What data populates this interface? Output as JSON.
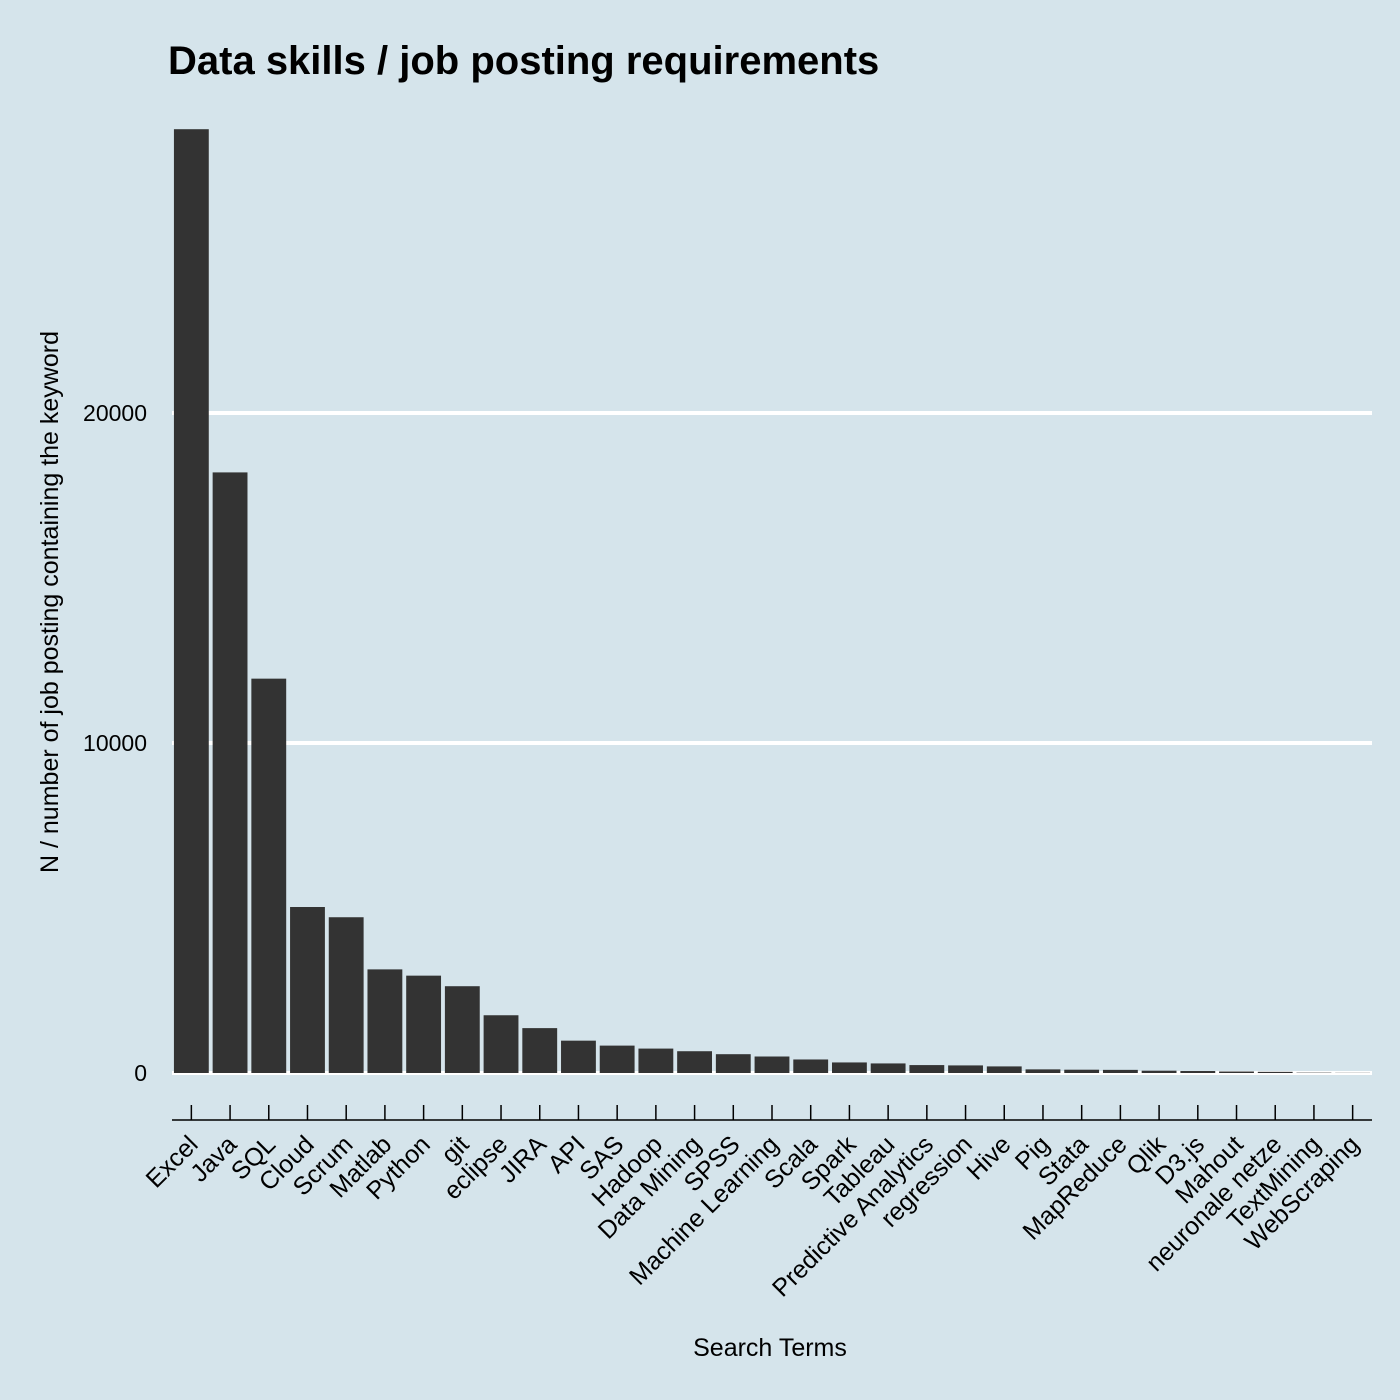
{
  "chart_data": {
    "type": "bar",
    "title": "Data skills / job posting requirements",
    "xlabel": "Search Terms",
    "ylabel": "N / number of job posting containing the keyword",
    "categories": [
      "Excel",
      "Java",
      "SQL",
      "Cloud",
      "Scrum",
      "Matlab",
      "Python",
      "git",
      "eclipse",
      "JIRA",
      "API",
      "SAS",
      "Hadoop",
      "Data Mining",
      "SPSS",
      "Machine Learning",
      "Scala",
      "Spark",
      "Tableau",
      "Predictive Analytics",
      "regression",
      "Hive",
      "Pig",
      "Stata",
      "MapReduce",
      "Qlik",
      "D3.js",
      "Mahout",
      "neuronale netze",
      "TextMining",
      "WebScraping"
    ],
    "values": [
      28600,
      18200,
      11950,
      5030,
      4720,
      3140,
      2950,
      2630,
      1750,
      1360,
      980,
      830,
      740,
      660,
      570,
      500,
      410,
      320,
      290,
      240,
      230,
      200,
      110,
      100,
      95,
      70,
      60,
      45,
      35,
      10,
      5
    ],
    "yticks": [
      0,
      10000,
      20000
    ],
    "ylim": [
      -1300,
      29200
    ],
    "grid": {
      "horizontal_major": true,
      "vertical": false
    },
    "colors": {
      "background": "#d5e4eb",
      "bar": "#333333",
      "grid": "#ffffff",
      "axis": "#000000"
    }
  }
}
